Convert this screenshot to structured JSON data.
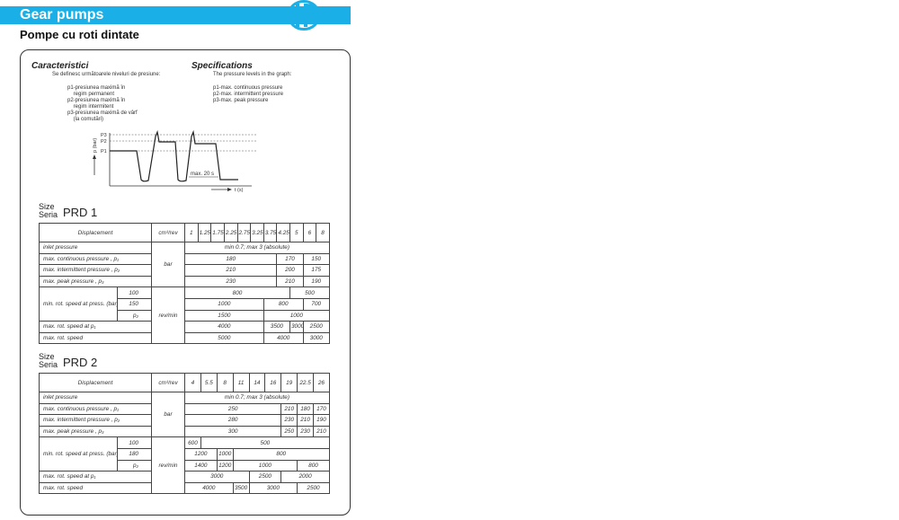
{
  "header": {
    "title": "Gear pumps",
    "subtitle": "Pompe cu roti dintate",
    "logo_text": "HP",
    "brand_color": "#1aafe6"
  },
  "characteristics": {
    "ro_title": "Caracteristici",
    "ro_intro": "Se definesc următoarele niveluri de presiune:",
    "ro_levels": "p1-presiunea maximă în\n    regim permanent\np2-presiunea maximă în\n    regim intermitent\np3-presiunea maximă de vârf\n    (la comutări)",
    "en_title": "Specifications",
    "en_intro": "The pressure levels in the graph:",
    "en_levels": "p1-max. continuous pressure\np2-max. intermittent pressure\np3-max. peak pressure"
  },
  "graph": {
    "p3": "P3",
    "p2": "P2",
    "p1": "P1",
    "y_axis": "p (bar)",
    "x_axis": "t (s)",
    "interval": "max. 20 s"
  },
  "tables": [
    {
      "size_label": "Size",
      "seria_label": "Seria",
      "name": "PRD 1",
      "displacement_label": "Displacement",
      "displacement_unit": "cm³/rev",
      "displacements": [
        "1",
        "1.25",
        "1.75",
        "2.25",
        "2.75",
        "3.25",
        "3.75",
        "4.25",
        "5",
        "6",
        "8"
      ],
      "pressure_unit": "bar",
      "speed_unit": "rev/min",
      "min_speed_label": "min. rot. speed at press. (bar):",
      "rows": [
        {
          "label": "inlet pressure",
          "cells": [
            [
              "min 0.7; max 3 (absolute)",
              11
            ]
          ]
        },
        {
          "label": "max. continuous pressure , p₁",
          "cells": [
            [
              "180",
              7
            ],
            [
              "170",
              2
            ],
            [
              "150",
              2
            ]
          ]
        },
        {
          "label": "max. intermittent pressure , p₂",
          "cells": [
            [
              "210",
              7
            ],
            [
              "200",
              2
            ],
            [
              "175",
              2
            ]
          ]
        },
        {
          "label": "max. peak pressure ,          p₃",
          "cells": [
            [
              "230",
              7
            ],
            [
              "210",
              2
            ],
            [
              "190",
              2
            ]
          ]
        },
        {
          "sub": "100",
          "cells": [
            [
              "800",
              8
            ],
            [
              "500",
              3
            ]
          ]
        },
        {
          "sub": "150",
          "cells": [
            [
              "1000",
              6
            ],
            [
              "800",
              3
            ],
            [
              "700",
              2
            ]
          ]
        },
        {
          "sub": "p₂",
          "cells": [
            [
              "1500",
              6
            ],
            [
              "1000",
              5
            ]
          ]
        },
        {
          "label": "max. rot. speed at p₁",
          "cells": [
            [
              "4000",
              6
            ],
            [
              "3500",
              2
            ],
            [
              "3000",
              1
            ],
            [
              "2500",
              2
            ]
          ]
        },
        {
          "label": "max. rot. speed",
          "cells": [
            [
              "5000",
              6
            ],
            [
              "4000",
              3
            ],
            [
              "3000",
              2
            ]
          ]
        }
      ]
    },
    {
      "size_label": "Size",
      "seria_label": "Seria",
      "name": "PRD 2",
      "displacement_label": "Displacement",
      "displacement_unit": "cm³/rev",
      "displacements": [
        "4",
        "5.5",
        "8",
        "11",
        "14",
        "16",
        "19",
        "22.5",
        "26"
      ],
      "pressure_unit": "bar",
      "speed_unit": "rev/min",
      "min_speed_label": "min. rot. speed at press. (bar):",
      "rows": [
        {
          "label": "inlet pressure",
          "cells": [
            [
              "min 0.7; max 3 (absolute)",
              9
            ]
          ]
        },
        {
          "label": "max. continuous pressure , p₁",
          "cells": [
            [
              "250",
              6
            ],
            [
              "210",
              1
            ],
            [
              "180",
              1
            ],
            [
              "170",
              1
            ]
          ]
        },
        {
          "label": "max. intermittent pressure , p₂",
          "cells": [
            [
              "280",
              6
            ],
            [
              "230",
              1
            ],
            [
              "210",
              1
            ],
            [
              "190",
              1
            ]
          ]
        },
        {
          "label": "max. peak pressure ,          p₃",
          "cells": [
            [
              "300",
              6
            ],
            [
              "250",
              1
            ],
            [
              "230",
              1
            ],
            [
              "210",
              1
            ]
          ]
        },
        {
          "sub": "100",
          "cells": [
            [
              "600",
              1
            ],
            [
              "500",
              8
            ]
          ]
        },
        {
          "sub": "180",
          "cells": [
            [
              "1200",
              2
            ],
            [
              "1000",
              1
            ],
            [
              "800",
              6
            ]
          ]
        },
        {
          "sub": "p₂",
          "cells": [
            [
              "1400",
              2
            ],
            [
              "1200",
              1
            ],
            [
              "1000",
              4
            ],
            [
              "800",
              2
            ]
          ]
        },
        {
          "label": "max. rot. speed at p₁",
          "cells": [
            [
              "3000",
              4
            ],
            [
              "2500",
              2
            ],
            [
              "2000",
              3
            ]
          ]
        },
        {
          "label": "max. rot. speed",
          "cells": [
            [
              "4000",
              3
            ],
            [
              "3500",
              1
            ],
            [
              "3000",
              3
            ],
            [
              "2500",
              2
            ]
          ]
        }
      ]
    }
  ]
}
